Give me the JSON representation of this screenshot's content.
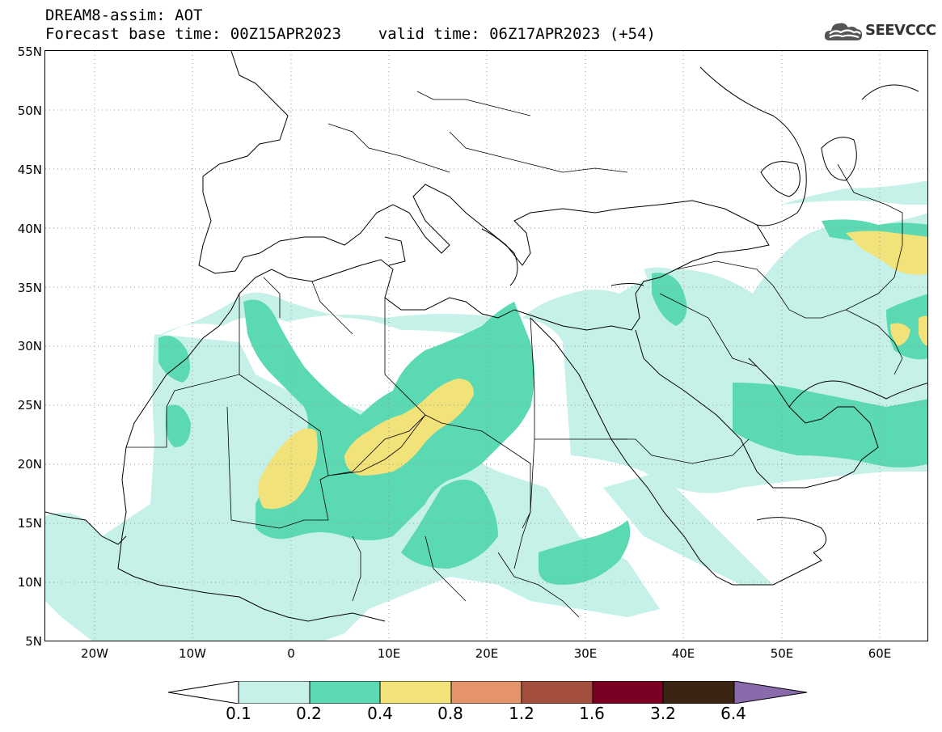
{
  "header": {
    "title_line1": "DREAM8-assim: AOT",
    "title_line2": "Forecast base time: 00Z15APR2023    valid time: 06Z17APR2023 (+54)",
    "logo_text": "SEEVCCC"
  },
  "map": {
    "lat_labels": [
      "55N",
      "50N",
      "45N",
      "40N",
      "35N",
      "30N",
      "25N",
      "20N",
      "15N",
      "10N",
      "5N"
    ],
    "lon_labels": [
      "20W",
      "10W",
      "0",
      "10E",
      "20E",
      "30E",
      "40E",
      "50E",
      "60E"
    ],
    "lat_range": [
      5,
      55
    ],
    "lon_range": [
      -25,
      65
    ],
    "field": "AOT"
  },
  "legend": {
    "levels": [
      "0.1",
      "0.2",
      "0.4",
      "0.8",
      "1.2",
      "1.6",
      "3.2",
      "6.4"
    ],
    "colors": [
      "#ffffff",
      "#c6f1e9",
      "#5ad9b3",
      "#f2e27a",
      "#e5936a",
      "#a44f3e",
      "#7a0024",
      "#3a2414",
      "#8a6aaa"
    ]
  }
}
